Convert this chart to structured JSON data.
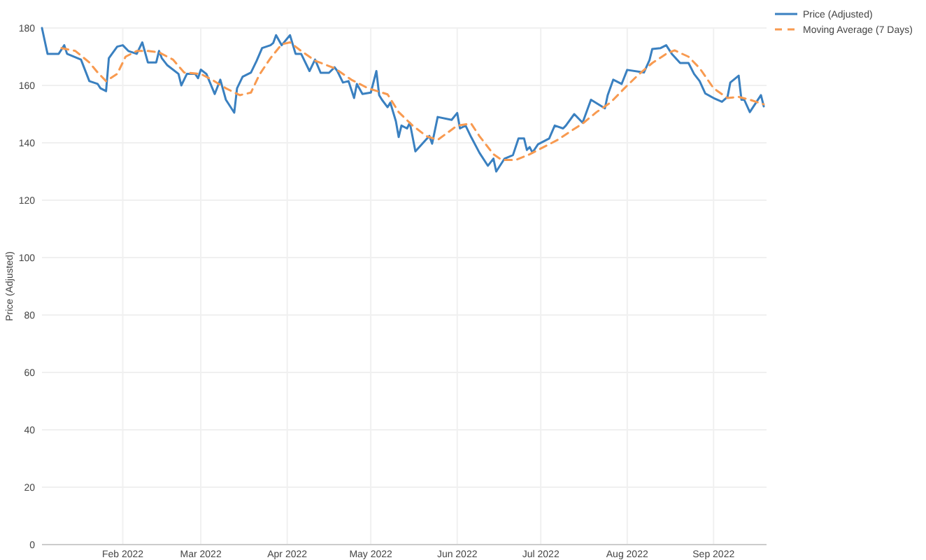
{
  "chart_data": {
    "type": "line",
    "ylabel": "Price (Adjusted)",
    "xlim": [
      "2022-01-03",
      "2022-09-20"
    ],
    "ylim": [
      0,
      180
    ],
    "xticks": [
      {
        "value": "2022-02-01",
        "label": "Feb 2022"
      },
      {
        "value": "2022-03-01",
        "label": "Mar 2022"
      },
      {
        "value": "2022-04-01",
        "label": "Apr 2022"
      },
      {
        "value": "2022-05-01",
        "label": "May 2022"
      },
      {
        "value": "2022-06-01",
        "label": "Jun 2022"
      },
      {
        "value": "2022-07-01",
        "label": "Jul 2022"
      },
      {
        "value": "2022-08-01",
        "label": "Aug 2022"
      },
      {
        "value": "2022-09-01",
        "label": "Sep 2022"
      }
    ],
    "yticks": [
      0,
      20,
      40,
      60,
      80,
      100,
      120,
      140,
      160,
      180
    ],
    "grid": true,
    "legend": "top right",
    "series": [
      {
        "name": "Price (Adjusted)",
        "color": "#3a80c0",
        "line_style": "solid",
        "x": [
          "2022-01-03",
          "2022-01-05",
          "2022-01-09",
          "2022-01-11",
          "2022-01-12",
          "2022-01-17",
          "2022-01-20",
          "2022-01-23",
          "2022-01-24",
          "2022-01-26",
          "2022-01-27",
          "2022-01-30",
          "2022-02-01",
          "2022-02-03",
          "2022-02-06",
          "2022-02-08",
          "2022-02-10",
          "2022-02-13",
          "2022-02-14",
          "2022-02-15",
          "2022-02-17",
          "2022-02-21",
          "2022-02-22",
          "2022-02-24",
          "2022-02-27",
          "2022-02-28",
          "2022-03-01",
          "2022-03-03",
          "2022-03-06",
          "2022-03-08",
          "2022-03-10",
          "2022-03-13",
          "2022-03-14",
          "2022-03-16",
          "2022-03-19",
          "2022-03-21",
          "2022-03-23",
          "2022-03-26",
          "2022-03-27",
          "2022-03-28",
          "2022-03-30",
          "2022-04-02",
          "2022-04-04",
          "2022-04-06",
          "2022-04-09",
          "2022-04-11",
          "2022-04-13",
          "2022-04-16",
          "2022-04-18",
          "2022-04-19",
          "2022-04-21",
          "2022-04-23",
          "2022-04-25",
          "2022-04-26",
          "2022-04-28",
          "2022-05-01",
          "2022-05-03",
          "2022-05-04",
          "2022-05-05",
          "2022-05-07",
          "2022-05-08",
          "2022-05-10",
          "2022-05-11",
          "2022-05-12",
          "2022-05-14",
          "2022-05-15",
          "2022-05-17",
          "2022-05-22",
          "2022-05-23",
          "2022-05-25",
          "2022-05-30",
          "2022-06-01",
          "2022-06-02",
          "2022-06-04",
          "2022-06-06",
          "2022-06-09",
          "2022-06-12",
          "2022-06-14",
          "2022-06-15",
          "2022-06-18",
          "2022-06-21",
          "2022-06-23",
          "2022-06-25",
          "2022-06-26",
          "2022-06-27",
          "2022-06-28",
          "2022-06-30",
          "2022-07-04",
          "2022-07-06",
          "2022-07-09",
          "2022-07-10",
          "2022-07-13",
          "2022-07-16",
          "2022-07-19",
          "2022-07-24",
          "2022-07-25",
          "2022-07-27",
          "2022-07-30",
          "2022-08-01",
          "2022-08-07",
          "2022-08-09",
          "2022-08-10",
          "2022-08-13",
          "2022-08-15",
          "2022-08-17",
          "2022-08-20",
          "2022-08-23",
          "2022-08-25",
          "2022-08-27",
          "2022-08-29",
          "2022-09-01",
          "2022-09-04",
          "2022-09-06",
          "2022-09-07",
          "2022-09-10",
          "2022-09-11",
          "2022-09-12",
          "2022-09-14",
          "2022-09-18",
          "2022-09-19"
        ],
        "values": [
          180,
          171,
          171,
          174,
          171,
          169,
          161.5,
          160.5,
          159,
          158,
          169.5,
          173.5,
          174,
          172,
          171,
          175,
          168,
          168,
          172,
          169.5,
          167,
          164,
          160,
          164,
          164,
          162.5,
          165.5,
          164,
          157,
          162,
          155,
          150.5,
          159,
          163,
          164.5,
          168.5,
          173,
          174,
          174.8,
          177.5,
          174,
          177.5,
          171,
          171,
          165,
          169,
          164.4,
          164.4,
          166.3,
          165,
          161,
          161.5,
          155.6,
          160.5,
          157,
          157.5,
          165,
          156.6,
          155,
          152.4,
          154,
          147.5,
          142,
          146,
          145,
          147,
          137,
          142.4,
          139.7,
          149,
          148,
          150.4,
          145,
          146,
          142,
          136.5,
          132,
          134.5,
          130,
          134.5,
          135.7,
          141.5,
          141.5,
          137.5,
          138.5,
          136.6,
          139.5,
          141.5,
          146,
          145,
          146,
          150,
          147,
          155,
          152,
          156.6,
          162,
          160.5,
          165.4,
          164.5,
          168.8,
          172.7,
          173,
          174,
          171,
          167.8,
          167.8,
          164,
          161.5,
          157.2,
          155.6,
          154.3,
          156,
          161,
          163.4,
          155,
          155,
          150.7,
          156.6,
          152.7
        ]
      },
      {
        "name": "Moving Average (7 Days)",
        "color": "#f89a50",
        "line_style": "dashed",
        "x": [
          "2022-01-10",
          "2022-01-15",
          "2022-01-20",
          "2022-01-23",
          "2022-01-26",
          "2022-01-30",
          "2022-02-02",
          "2022-02-06",
          "2022-02-10",
          "2022-02-14",
          "2022-02-19",
          "2022-02-23",
          "2022-03-01",
          "2022-03-05",
          "2022-03-10",
          "2022-03-15",
          "2022-03-19",
          "2022-03-22",
          "2022-03-26",
          "2022-03-30",
          "2022-04-02",
          "2022-04-06",
          "2022-04-11",
          "2022-04-18",
          "2022-04-24",
          "2022-04-30",
          "2022-05-07",
          "2022-05-11",
          "2022-05-16",
          "2022-05-21",
          "2022-05-25",
          "2022-06-01",
          "2022-06-06",
          "2022-06-09",
          "2022-06-14",
          "2022-06-17",
          "2022-06-22",
          "2022-06-27",
          "2022-07-02",
          "2022-07-07",
          "2022-07-12",
          "2022-07-16",
          "2022-07-21",
          "2022-07-26",
          "2022-07-31",
          "2022-08-05",
          "2022-08-10",
          "2022-08-15",
          "2022-08-18",
          "2022-08-23",
          "2022-08-27",
          "2022-09-01",
          "2022-09-06",
          "2022-09-10",
          "2022-09-14",
          "2022-09-19"
        ],
        "values": [
          173,
          172,
          168,
          164.5,
          161.5,
          164,
          170,
          172,
          172,
          171.5,
          169,
          164.5,
          164,
          162,
          159,
          156.6,
          157.5,
          163.7,
          169.5,
          174.3,
          175,
          172,
          168.6,
          166,
          162,
          159,
          156.9,
          150.7,
          146,
          142.3,
          141,
          146,
          146.7,
          142.3,
          136,
          134,
          134,
          136,
          138.5,
          141,
          144.2,
          146.7,
          150.7,
          154,
          159,
          163.7,
          167.8,
          171,
          172.2,
          170,
          166,
          159,
          155.6,
          156,
          155,
          153.4
        ]
      }
    ]
  }
}
